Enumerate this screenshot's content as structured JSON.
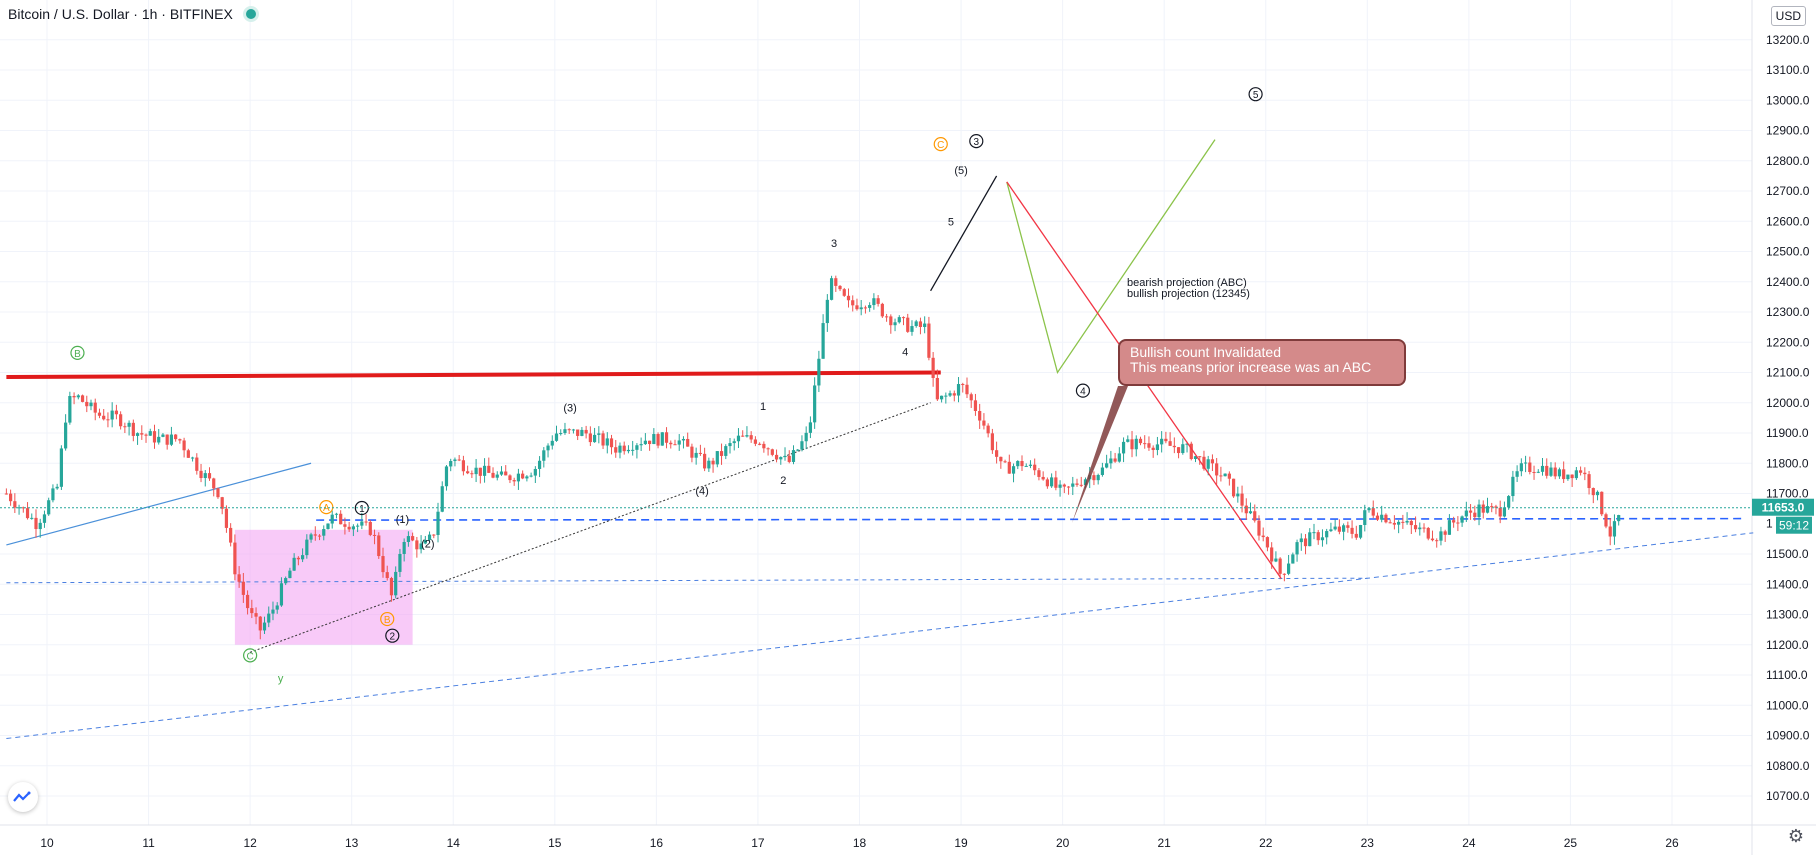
{
  "header": {
    "title": "Bitcoin / U.S. Dollar · 1h · BITFINEX",
    "currency": "USD"
  },
  "price_axis": {
    "ticks": [
      "13200.0",
      "13100.0",
      "13000.0",
      "12900.0",
      "12800.0",
      "12700.0",
      "12600.0",
      "12500.0",
      "12400.0",
      "12300.0",
      "12200.0",
      "12100.0",
      "12000.0",
      "11900.0",
      "11800.0",
      "11700.0",
      "11500.0",
      "11400.0",
      "11300.0",
      "11200.0",
      "11100.0",
      "11000.0",
      "10900.0",
      "10800.0",
      "10700.0"
    ],
    "last_price_label": "11653.0",
    "countdown_label": "59:12",
    "current_tick_partial": "1"
  },
  "time_axis": {
    "ticks": [
      "10",
      "11",
      "12",
      "13",
      "14",
      "15",
      "16",
      "17",
      "18",
      "19",
      "20",
      "21",
      "22",
      "23",
      "24",
      "25",
      "26"
    ]
  },
  "annotations": {
    "callout_line1": "Bullish count Invalidated",
    "callout_line2": "This means prior increase was an ABC",
    "projection_text1": "bearish projection (ABC)",
    "projection_text2": "bullish projection (12345)"
  },
  "wave_labels": [
    {
      "text": "B",
      "kind": "circle",
      "color": "#4caf50",
      "day": 10.3,
      "price": 12165
    },
    {
      "text": "A",
      "kind": "circle",
      "color": "#ff9800",
      "day": 12.75,
      "price": 11655
    },
    {
      "text": "1",
      "kind": "circle",
      "color": "#131722",
      "day": 13.1,
      "price": 11652
    },
    {
      "text": "C",
      "kind": "circle",
      "color": "#4caf50",
      "day": 12.0,
      "price": 11165
    },
    {
      "text": "B",
      "kind": "circle",
      "color": "#ff9800",
      "day": 13.35,
      "price": 11285
    },
    {
      "text": "2",
      "kind": "circle",
      "color": "#131722",
      "day": 13.4,
      "price": 11230
    },
    {
      "text": "y",
      "kind": "plain",
      "color": "#4caf50",
      "day": 12.3,
      "price": 11090
    },
    {
      "text": "(1)",
      "kind": "plain",
      "color": "#131722",
      "day": 13.5,
      "price": 11615
    },
    {
      "text": "(2)",
      "kind": "plain",
      "color": "#131722",
      "day": 13.75,
      "price": 11535
    },
    {
      "text": "(3)",
      "kind": "plain",
      "color": "#131722",
      "day": 15.15,
      "price": 11985
    },
    {
      "text": "(4)",
      "kind": "plain",
      "color": "#131722",
      "day": 16.45,
      "price": 11710
    },
    {
      "text": "1",
      "kind": "plain",
      "color": "#131722",
      "day": 17.05,
      "price": 11990
    },
    {
      "text": "2",
      "kind": "plain",
      "color": "#131722",
      "day": 17.25,
      "price": 11745
    },
    {
      "text": "3",
      "kind": "plain",
      "color": "#131722",
      "day": 17.75,
      "price": 12528
    },
    {
      "text": "4",
      "kind": "plain",
      "color": "#131722",
      "day": 18.45,
      "price": 12170
    },
    {
      "text": "5",
      "kind": "plain",
      "color": "#131722",
      "day": 18.9,
      "price": 12600
    },
    {
      "text": "(5)",
      "kind": "plain",
      "color": "#131722",
      "day": 19.0,
      "price": 12770
    },
    {
      "text": "C",
      "kind": "circle",
      "color": "#ff9800",
      "day": 18.8,
      "price": 12855
    },
    {
      "text": "3",
      "kind": "circle",
      "color": "#131722",
      "day": 19.15,
      "price": 12865
    },
    {
      "text": "4",
      "kind": "circle",
      "color": "#131722",
      "day": 20.2,
      "price": 12040
    },
    {
      "text": "5",
      "kind": "circle",
      "color": "#131722",
      "day": 21.9,
      "price": 13020
    }
  ],
  "colors": {
    "up": "#26a69a",
    "down": "#ef5350",
    "resistance": "#e01b1b",
    "support": "#2962ff",
    "projection_bear": "#8bc34a",
    "projection_bull": "#8bc34a",
    "drawing_red": "#f23645",
    "box": "#f3a6f3"
  },
  "chart_data": {
    "type": "candlestick",
    "symbol": "Bitcoin / U.S. Dollar",
    "interval": "1h",
    "exchange": "BITFINEX",
    "ylim": [
      10650,
      13250
    ],
    "xlim_days": [
      9.6,
      26.8
    ],
    "last_price": 11653.0,
    "close_path": [
      [
        9.6,
        11700
      ],
      [
        9.9,
        11600
      ],
      [
        10.1,
        11720
      ],
      [
        10.2,
        12000
      ],
      [
        10.3,
        12020
      ],
      [
        10.5,
        11960
      ],
      [
        10.7,
        11950
      ],
      [
        10.9,
        11900
      ],
      [
        11.1,
        11880
      ],
      [
        11.3,
        11880
      ],
      [
        11.5,
        11780
      ],
      [
        11.7,
        11700
      ],
      [
        11.85,
        11450
      ],
      [
        12.0,
        11300
      ],
      [
        12.1,
        11250
      ],
      [
        12.2,
        11300
      ],
      [
        12.4,
        11450
      ],
      [
        12.6,
        11550
      ],
      [
        12.8,
        11620
      ],
      [
        13.0,
        11600
      ],
      [
        13.2,
        11580
      ],
      [
        13.4,
        11350
      ],
      [
        13.5,
        11560
      ],
      [
        13.7,
        11520
      ],
      [
        13.8,
        11560
      ],
      [
        13.95,
        11820
      ],
      [
        14.2,
        11780
      ],
      [
        14.5,
        11750
      ],
      [
        14.8,
        11780
      ],
      [
        15.0,
        11900
      ],
      [
        15.3,
        11900
      ],
      [
        15.6,
        11850
      ],
      [
        15.9,
        11880
      ],
      [
        16.2,
        11880
      ],
      [
        16.5,
        11790
      ],
      [
        16.8,
        11880
      ],
      [
        17.0,
        11880
      ],
      [
        17.3,
        11800
      ],
      [
        17.5,
        11900
      ],
      [
        17.6,
        12150
      ],
      [
        17.7,
        12400
      ],
      [
        17.9,
        12320
      ],
      [
        18.1,
        12340
      ],
      [
        18.3,
        12280
      ],
      [
        18.5,
        12250
      ],
      [
        18.65,
        12250
      ],
      [
        18.75,
        12000
      ],
      [
        18.9,
        12030
      ],
      [
        19.0,
        12060
      ],
      [
        19.2,
        11950
      ],
      [
        19.4,
        11780
      ],
      [
        19.6,
        11800
      ],
      [
        19.8,
        11760
      ],
      [
        20.0,
        11700
      ],
      [
        20.2,
        11750
      ],
      [
        20.4,
        11780
      ],
      [
        20.6,
        11860
      ],
      [
        20.8,
        11870
      ],
      [
        21.0,
        11860
      ],
      [
        21.2,
        11850
      ],
      [
        21.4,
        11800
      ],
      [
        21.6,
        11750
      ],
      [
        21.8,
        11650
      ],
      [
        22.0,
        11540
      ],
      [
        22.15,
        11430
      ],
      [
        22.3,
        11530
      ],
      [
        22.5,
        11560
      ],
      [
        22.7,
        11580
      ],
      [
        22.9,
        11570
      ],
      [
        23.0,
        11650
      ],
      [
        23.2,
        11620
      ],
      [
        23.5,
        11580
      ],
      [
        23.7,
        11560
      ],
      [
        23.9,
        11620
      ],
      [
        24.1,
        11650
      ],
      [
        24.3,
        11640
      ],
      [
        24.5,
        11780
      ],
      [
        24.7,
        11790
      ],
      [
        24.9,
        11760
      ],
      [
        25.1,
        11780
      ],
      [
        25.25,
        11700
      ],
      [
        25.4,
        11560
      ],
      [
        25.5,
        11640
      ]
    ],
    "lines": [
      {
        "name": "red-resistance",
        "from": [
          9.6,
          12085
        ],
        "to": [
          18.8,
          12100
        ]
      },
      {
        "name": "blue-upper-trend",
        "from": [
          9.6,
          11530
        ],
        "to": [
          12.6,
          11800
        ]
      },
      {
        "name": "blue-dashed-level",
        "from": [
          12.65,
          11612
        ],
        "to": [
          26.7,
          11617
        ]
      },
      {
        "name": "blue-dashed-lower-trend",
        "from": [
          9.6,
          10890
        ],
        "to": [
          26.8,
          11570
        ]
      },
      {
        "name": "blue-dotted-level",
        "from": [
          9.6,
          11405
        ],
        "to": [
          23.0,
          11420
        ]
      },
      {
        "name": "dotted-wave-trend",
        "from": [
          12.0,
          11175
        ],
        "to": [
          18.7,
          12000
        ]
      }
    ],
    "projections": [
      {
        "name": "black-arrow",
        "points": [
          [
            18.7,
            12370
          ],
          [
            19.35,
            12750
          ]
        ]
      },
      {
        "name": "green-abc",
        "points": [
          [
            19.45,
            12730
          ],
          [
            19.95,
            12100
          ],
          [
            21.5,
            12870
          ]
        ]
      },
      {
        "name": "red-down",
        "points": [
          [
            19.45,
            12730
          ],
          [
            22.15,
            11420
          ]
        ]
      }
    ],
    "box": {
      "day_from": 11.85,
      "day_to": 13.6,
      "price_from": 11200,
      "price_to": 11580
    }
  }
}
